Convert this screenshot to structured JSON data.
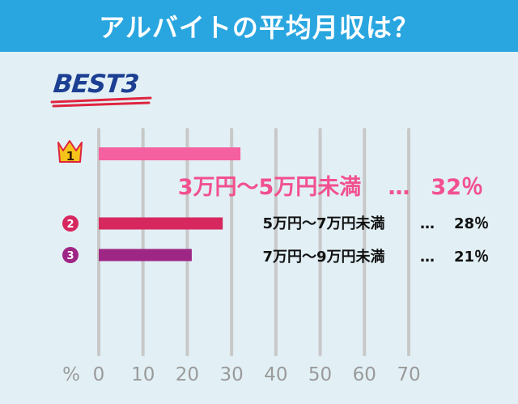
{
  "title": "アルバイトの平均月収は？",
  "ranking_label": "BEST3",
  "chart_data": {
    "type": "bar",
    "orientation": "horizontal",
    "categories": [
      "3万円〜5万円未満",
      "5万円〜7万円未満",
      "7万円〜9万円未満"
    ],
    "values": [
      32,
      28,
      21
    ],
    "rank_badges": [
      "1",
      "2",
      "3"
    ],
    "value_labels": [
      "32％",
      "28％",
      "21％"
    ],
    "separator": "…",
    "xlabel": "%",
    "xlim": [
      0,
      70
    ],
    "xticks": [
      0,
      10,
      20,
      30,
      40,
      50,
      60,
      70
    ],
    "grid": "vertical",
    "colors": {
      "rank1": "#f560a0",
      "rank2": "#d6285f",
      "rank3": "#9e2685",
      "rank1_text": "#f2508f",
      "crown": "#f5c41a",
      "grid": "#c8c8c8",
      "axis_text": "#9a9a9a"
    }
  }
}
